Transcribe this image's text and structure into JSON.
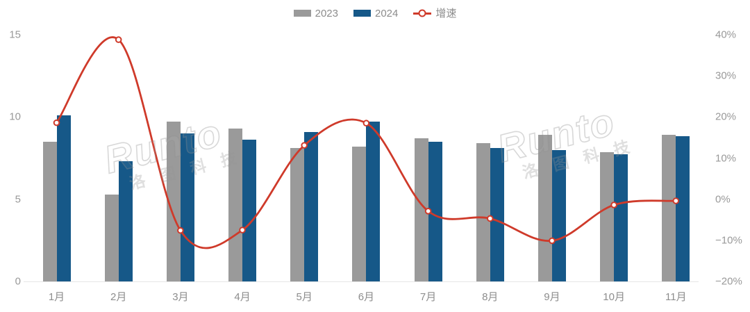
{
  "legend": {
    "items": [
      {
        "label": "2023",
        "type": "bar",
        "color": "#9a9a9a"
      },
      {
        "label": "2024",
        "type": "bar",
        "color": "#165888"
      },
      {
        "label": "增速",
        "type": "line",
        "color": "#cf3a2a"
      }
    ]
  },
  "watermark": {
    "brand": "Runto",
    "cjk": "洛图科技"
  },
  "chart_data": {
    "type": "bar+line-combo",
    "title": "",
    "categories": [
      "1月",
      "2月",
      "3月",
      "4月",
      "5月",
      "6月",
      "7月",
      "8月",
      "9月",
      "10月",
      "11月"
    ],
    "series": [
      {
        "name": "2023",
        "type": "bar",
        "axis": "left",
        "color": "#9a9a9a",
        "values": [
          8.5,
          5.3,
          9.7,
          9.3,
          8.1,
          8.2,
          8.7,
          8.4,
          8.9,
          7.85,
          8.9
        ]
      },
      {
        "name": "2024",
        "type": "bar",
        "axis": "left",
        "color": "#165888",
        "values": [
          10.1,
          7.3,
          9.0,
          8.6,
          9.1,
          9.7,
          8.5,
          8.1,
          8.0,
          7.75,
          8.85
        ]
      },
      {
        "name": "增速",
        "type": "line",
        "axis": "right",
        "color": "#cf3a2a",
        "smooth": true,
        "values_pct": [
          18.6,
          38.8,
          -7.6,
          -7.5,
          13.1,
          18.5,
          -2.9,
          -4.7,
          -10.1,
          -1.4,
          -0.4
        ]
      }
    ],
    "left_axis": {
      "ticks": [
        0,
        5,
        10,
        15
      ],
      "range": [
        0,
        15
      ]
    },
    "right_axis": {
      "ticks": [
        "40%",
        "30%",
        "20%",
        "10%",
        "0%",
        "−10%",
        "−20%"
      ],
      "range_pct": [
        -20,
        40
      ]
    },
    "grid": false,
    "legend_position": "top"
  }
}
